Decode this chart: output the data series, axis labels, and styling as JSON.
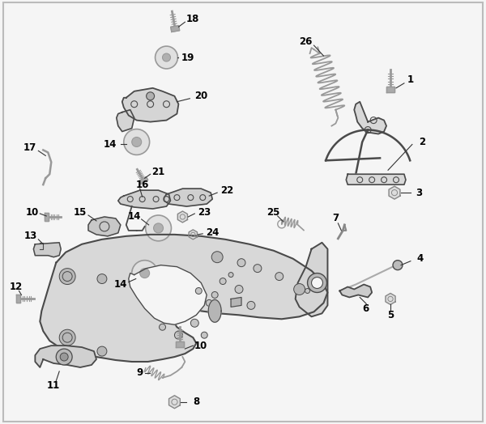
{
  "bg_color": "#f5f5f5",
  "line_color": "#4a4a4a",
  "label_color": "#000000",
  "label_fontsize": 8.5,
  "label_fontweight": "bold",
  "figsize": [
    6.0,
    5.24
  ],
  "dpi": 100,
  "border_color": "#bbbbbb"
}
